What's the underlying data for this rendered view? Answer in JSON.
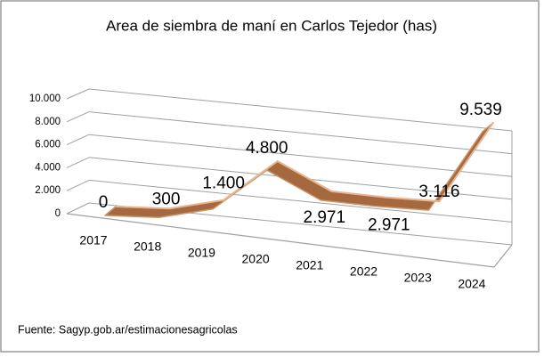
{
  "chart_data": {
    "type": "line3d",
    "title": "Area de siembra de maní en Carlos Tejedor (has)",
    "categories": [
      "2017",
      "2018",
      "2019",
      "2020",
      "2021",
      "2022",
      "2023",
      "2024"
    ],
    "values": [
      0,
      300,
      1400,
      4800,
      2971,
      2971,
      3116,
      9539
    ],
    "value_labels": [
      "0",
      "300",
      "1.400",
      "4.800",
      "2.971",
      "2.971",
      "3.116",
      "9.539"
    ],
    "color": "#c8956a",
    "ylim": [
      0,
      10000
    ],
    "yticks": [
      0,
      {
        "value": 2000,
        "label": "2.000"
      },
      {
        "value": 4000,
        "label": "4.000"
      },
      {
        "value": 6000,
        "label": "6.000"
      },
      {
        "value": 8000,
        "label": "8.000"
      },
      {
        "value": 10000,
        "label": "10.000"
      }
    ],
    "grid": true,
    "source": "Fuente: Sagyp.gob.ar/estimacionesagricolas"
  }
}
